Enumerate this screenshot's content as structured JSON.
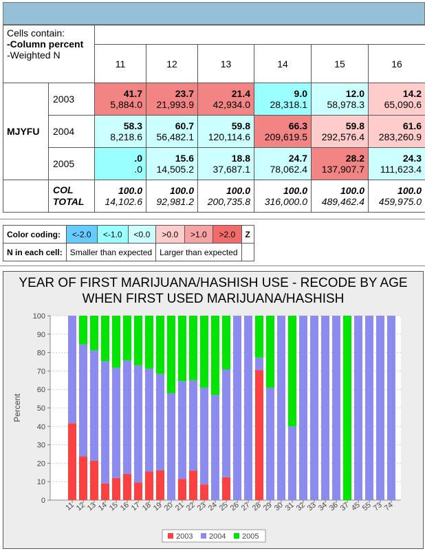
{
  "crosstab": {
    "legend_title": "Cells contain:",
    "legend_items": [
      "-Column percent",
      "-Weighted N"
    ],
    "row_variable": "MJYFU",
    "columns": [
      "11",
      "12",
      "13",
      "14",
      "15",
      "16"
    ],
    "rows": [
      {
        "label": "2003",
        "colors": [
          "#f28484",
          "#f28484",
          "#f28484",
          "#99ffff",
          "#ccffff",
          "#ffcccc"
        ],
        "cells": [
          [
            "41.7",
            "5,884.0"
          ],
          [
            "23.7",
            "21,993.9"
          ],
          [
            "21.4",
            "42,934.0"
          ],
          [
            "9.0",
            "28,318.1"
          ],
          [
            "12.0",
            "58,978.3"
          ],
          [
            "14.2",
            "65,090.6"
          ]
        ]
      },
      {
        "label": "2004",
        "colors": [
          "#ccffff",
          "#ccffff",
          "#ccffff",
          "#f28484",
          "#ffcccc",
          "#ffcccc"
        ],
        "cells": [
          [
            "58.3",
            "8,218.6"
          ],
          [
            "60.7",
            "56,482.1"
          ],
          [
            "59.8",
            "120,114.6"
          ],
          [
            "66.3",
            "209,619.5"
          ],
          [
            "59.8",
            "292,576.4"
          ],
          [
            "61.6",
            "283,260.9"
          ]
        ]
      },
      {
        "label": "2005",
        "colors": [
          "#99ffff",
          "#ccffff",
          "#ccffff",
          "#ccffff",
          "#f28484",
          "#ccffff"
        ],
        "cells": [
          [
            ".0",
            ".0"
          ],
          [
            "15.6",
            "14,505.2"
          ],
          [
            "18.8",
            "37,687.1"
          ],
          [
            "24.7",
            "78,062.4"
          ],
          [
            "28.2",
            "137,907.7"
          ],
          [
            "24.3",
            "111,623.4"
          ]
        ]
      }
    ],
    "total_label": [
      "COL",
      "TOTAL"
    ],
    "total_cells": [
      [
        "100.0",
        "14,102.6"
      ],
      [
        "100.0",
        "92,981.2"
      ],
      [
        "100.0",
        "200,735.8"
      ],
      [
        "100.0",
        "316,000.0"
      ],
      [
        "100.0",
        "489,462.4"
      ],
      [
        "100.0",
        "459,975.0"
      ]
    ]
  },
  "color_coding": {
    "label": "Color coding:",
    "items": [
      {
        "text": "<-2.0",
        "color": "#66ccff"
      },
      {
        "text": "<-1.0",
        "color": "#99ffff"
      },
      {
        "text": "<0.0",
        "color": "#ccffff"
      },
      {
        "text": ">0.0",
        "color": "#ffcccc"
      },
      {
        "text": ">1.0",
        "color": "#f7a3a3"
      },
      {
        "text": ">2.0",
        "color": "#f26b6b"
      }
    ],
    "z_label": "Z",
    "n_label": "N in each cell:",
    "smaller": "Smaller than expected",
    "larger": "Larger than expected"
  },
  "chart_data": {
    "type": "bar",
    "stacked": true,
    "title": "YEAR OF FIRST MARIJUANA/HASHISH USE - RECODE BY AGE WHEN FIRST USED MARIJUANA/HASHISH",
    "xlabel": "",
    "ylabel": "Percent",
    "ylim": [
      0,
      100
    ],
    "yticks": [
      0,
      10,
      20,
      30,
      40,
      50,
      60,
      70,
      80,
      90,
      100
    ],
    "grid": true,
    "legend_position": "bottom",
    "categories": [
      "11",
      "12",
      "13",
      "14",
      "15",
      "16",
      "17",
      "18",
      "19",
      "20",
      "21",
      "22",
      "23",
      "24",
      "25",
      "26",
      "27",
      "28",
      "29",
      "30",
      "31",
      "32",
      "33",
      "34",
      "36",
      "37",
      "45",
      "55",
      "73",
      "74"
    ],
    "series": [
      {
        "name": "2003",
        "color": "#ff4040",
        "values": [
          41.7,
          23.7,
          21.4,
          9.0,
          12.0,
          14.2,
          9.6,
          15.5,
          16.2,
          0,
          11.5,
          16.0,
          8.5,
          0,
          12.4,
          0,
          0,
          70.5,
          0,
          0,
          0,
          0,
          0,
          0,
          0,
          0,
          0,
          0,
          0,
          0
        ]
      },
      {
        "name": "2004",
        "color": "#8c8cf0",
        "values": [
          58.3,
          60.7,
          59.8,
          66.3,
          59.8,
          61.6,
          63.5,
          55.8,
          52.2,
          58.0,
          53.0,
          49.0,
          52.5,
          57.0,
          58.5,
          100,
          100,
          6.8,
          61.0,
          100,
          40.0,
          100,
          100,
          100,
          100,
          0,
          100,
          100,
          100,
          100
        ]
      },
      {
        "name": "2005",
        "color": "#00e600",
        "values": [
          0.0,
          15.6,
          18.8,
          24.7,
          28.2,
          24.3,
          26.9,
          28.7,
          31.6,
          42.0,
          35.5,
          35.0,
          39.0,
          43.0,
          29.1,
          0,
          0,
          22.7,
          39.0,
          0,
          60.0,
          0,
          0,
          0,
          0,
          100,
          0,
          0,
          0,
          0
        ]
      }
    ]
  }
}
